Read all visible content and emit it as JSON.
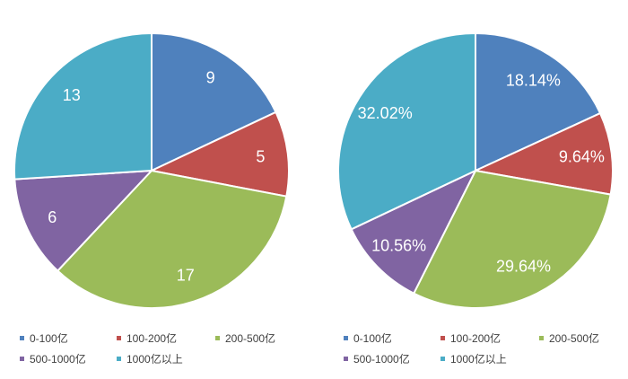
{
  "colors": {
    "0-100亿": "#4f81bd",
    "100-200亿": "#c0504d",
    "200-500亿": "#9bbb59",
    "500-1000亿": "#8064a2",
    "1000亿以上": "#4bacc6"
  },
  "chart_data": [
    {
      "type": "pie",
      "categories": [
        "0-100亿",
        "100-200亿",
        "200-500亿",
        "500-1000亿",
        "1000亿以上"
      ],
      "values": [
        9,
        5,
        17,
        6,
        13
      ],
      "data_labels": [
        "9",
        "5",
        "17",
        "6",
        "13"
      ],
      "legend": [
        "0-100亿",
        "100-200亿",
        "200-500亿",
        "500-1000亿",
        "1000亿以上"
      ],
      "legend_position": "bottom"
    },
    {
      "type": "pie",
      "categories": [
        "0-100亿",
        "100-200亿",
        "200-500亿",
        "500-1000亿",
        "1000亿以上"
      ],
      "values": [
        18.14,
        9.64,
        29.64,
        10.56,
        32.02
      ],
      "data_labels": [
        "18.14%",
        "9.64%",
        "29.64%",
        "10.56%",
        "32.02%"
      ],
      "legend": [
        "0-100亿",
        "100-200亿",
        "200-500亿",
        "500-1000亿",
        "1000亿以上"
      ],
      "legend_position": "bottom"
    }
  ]
}
